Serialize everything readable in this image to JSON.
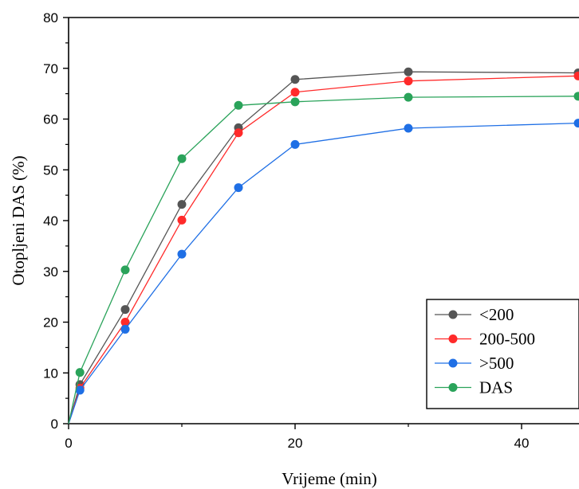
{
  "chart_data": {
    "type": "line",
    "title": "",
    "xlabel": "Vrijeme (min)",
    "ylabel": "Otopljeni DAS (%)",
    "xlim": [
      0,
      45
    ],
    "ylim": [
      0,
      80
    ],
    "x_ticks": [
      0,
      20,
      40
    ],
    "y_ticks": [
      0,
      10,
      20,
      30,
      40,
      50,
      60,
      70,
      80
    ],
    "x_minor_step": 10,
    "y_minor_step": 5,
    "grid": false,
    "legend_position": "bottom-right",
    "x": [
      0,
      1,
      5,
      10,
      15,
      20,
      30,
      45
    ],
    "series": [
      {
        "name": "<200",
        "color": "#555555",
        "values": [
          0,
          7.7,
          22.5,
          43.2,
          58.3,
          67.8,
          69.3,
          69.1
        ]
      },
      {
        "name": "200-500",
        "color": "#ff2a2a",
        "values": [
          0,
          7.0,
          20.0,
          40.1,
          57.3,
          65.3,
          67.5,
          68.5
        ]
      },
      {
        "name": ">500",
        "color": "#1f6fe5",
        "values": [
          0,
          6.6,
          18.6,
          33.4,
          46.5,
          55.0,
          58.2,
          59.2
        ]
      },
      {
        "name": "DAS",
        "color": "#2aa35a",
        "values": [
          0,
          10.1,
          30.3,
          52.2,
          62.7,
          63.4,
          64.3,
          64.5
        ]
      }
    ]
  }
}
